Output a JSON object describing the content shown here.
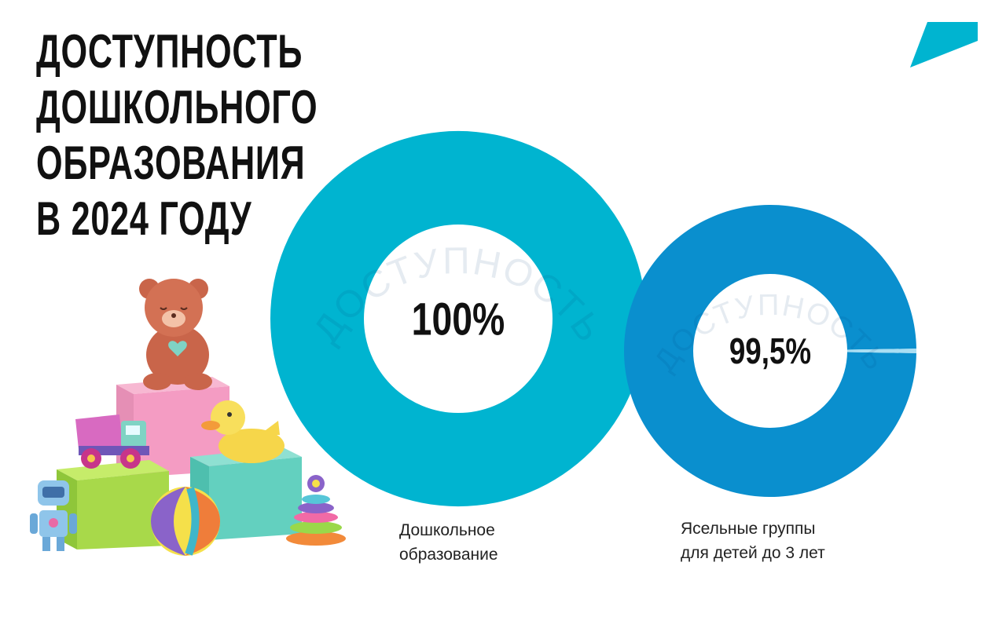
{
  "title": {
    "lines": [
      "ДОСТУПНОСТЬ",
      "ДОШКОЛЬНОГО",
      "ОБРАЗОВАНИЯ",
      "В 2024 ГОДУ"
    ]
  },
  "chart_data": [
    {
      "type": "pie",
      "subtype": "donut",
      "watermark": "ДОСТУПНОСТЬ",
      "center_label": "100%",
      "caption": "Дошкольное\nобразование",
      "value": 100,
      "unit": "%",
      "colors": {
        "filled": "#00b4d0",
        "remaining": "#a8ddf0"
      }
    },
    {
      "type": "pie",
      "subtype": "donut",
      "watermark": "ДОСТУПНОСТЬ",
      "center_label": "99,5%",
      "caption": "Ясельные группы\nдля детей до 3 лет",
      "value": 99.5,
      "unit": "%",
      "colors": {
        "filled": "#0a8fce",
        "remaining": "#a9def3"
      }
    }
  ],
  "colors": {
    "logo": "#00b4d0"
  },
  "icons": [
    "logo-parallelogram-icon",
    "teddy-bear-icon",
    "toy-truck-icon",
    "rubber-duck-icon",
    "robot-icon",
    "beach-ball-icon",
    "ring-pyramid-icon",
    "toy-block-icon"
  ]
}
